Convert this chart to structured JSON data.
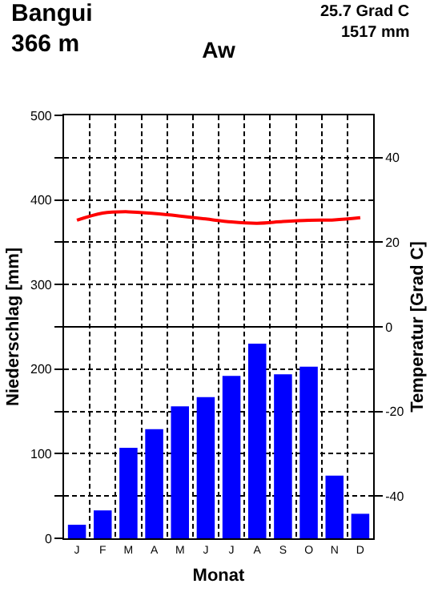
{
  "chart_data": {
    "type": "bar",
    "title": "Aw",
    "xlabel": "Monat",
    "ylabel": "Niederschlag [mm]",
    "y2label": "Temperatur [Grad C]",
    "annotations": [
      "Bangui",
      "366 m",
      "25.7 Grad C",
      "1517 mm"
    ],
    "categories": [
      "J",
      "F",
      "M",
      "A",
      "M",
      "J",
      "J",
      "A",
      "S",
      "O",
      "N",
      "D"
    ],
    "series": [
      {
        "color": "#0000ff",
        "values": [
          16,
          33,
          107,
          129,
          156,
          167,
          192,
          230,
          194,
          203,
          74,
          29
        ]
      },
      {
        "type": "line",
        "axis": "y2",
        "color": "#ff0000",
        "values": [
          25.2,
          26.9,
          27.2,
          26.8,
          26.2,
          25.5,
          24.8,
          24.5,
          24.9,
          25.2,
          25.3,
          25.8
        ]
      }
    ],
    "ylim": [
      0,
      500
    ],
    "yticks": [
      0,
      {
        "value": 50,
        "label": null
      },
      100,
      {
        "value": 150,
        "label": null
      },
      200,
      {
        "value": 250,
        "label": null
      },
      300,
      {
        "value": 350,
        "label": null
      },
      400,
      {
        "value": 450,
        "label": null
      },
      500
    ],
    "y2lim": [
      -50,
      50
    ],
    "y2ticks": [
      -40,
      -20,
      0,
      20,
      40
    ],
    "ref_lines": [
      {
        "axis": "y2",
        "value": 0,
        "label": null
      }
    ],
    "grid": true
  }
}
